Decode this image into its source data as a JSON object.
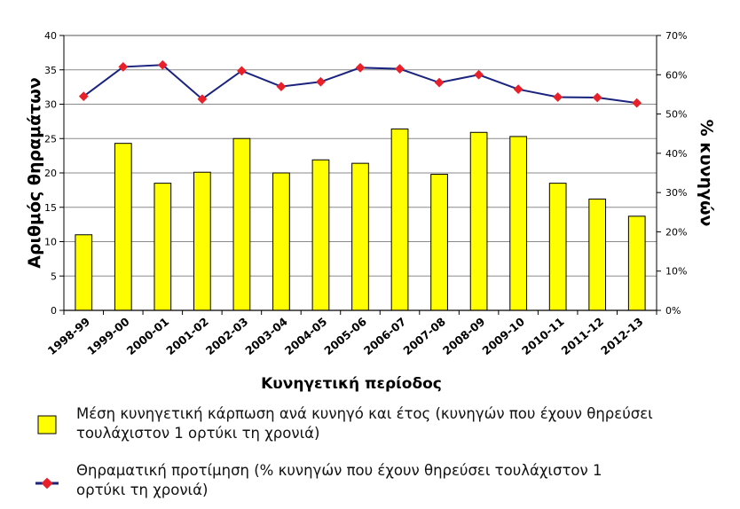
{
  "chart_data": {
    "type": "bar",
    "xlabel": "Κυνηγετική περίοδος",
    "ylabel_left": "Αριθμός θηραμάτων",
    "ylabel_right": "% κυνηγών",
    "categories": [
      "1998-99",
      "1999-00",
      "2000-01",
      "2001-02",
      "2002-03",
      "2003-04",
      "2004-05",
      "2005-06",
      "2006-07",
      "2007-08",
      "2008-09",
      "2009-10",
      "2010-11",
      "2011-12",
      "2012-13"
    ],
    "ylim_left": [
      0,
      40
    ],
    "yticks_left": [
      "0",
      "5",
      "10",
      "15",
      "20",
      "25",
      "30",
      "35",
      "40"
    ],
    "ylim_right": [
      0,
      70
    ],
    "yticks_right": [
      "0%",
      "10%",
      "20%",
      "30%",
      "40%",
      "50%",
      "60%",
      "70%"
    ],
    "grid": true,
    "legend_position": "bottom",
    "series": [
      {
        "name": "Μέση κυνηγετική κάρπωση ανά κυνηγό και έτος (κυνηγών που έχουν θηρεύσει τουλάχιστον 1 ορτύκι τη χρονιά)",
        "type": "bar",
        "axis": "left",
        "color": "#ffff00",
        "values": [
          11.0,
          24.3,
          18.5,
          20.1,
          25.0,
          20.0,
          21.9,
          21.4,
          26.4,
          19.8,
          25.9,
          25.3,
          18.5,
          16.2,
          13.7
        ]
      },
      {
        "name": "Θηραματική προτίμηση (% κυνηγών που έχουν θηρεύσει τουλάχιστον 1 ορτύκι τη χρονιά)",
        "type": "line",
        "axis": "right",
        "color": "#1a237e",
        "marker_color": "#e8202a",
        "values": [
          54.5,
          62.0,
          62.5,
          53.8,
          61.0,
          57.0,
          58.2,
          61.8,
          61.5,
          58.0,
          60.0,
          56.3,
          54.3,
          54.2,
          52.8
        ]
      }
    ]
  },
  "colors": {
    "plot_background": "#ffffff",
    "gridline": "#888888",
    "axis": "#000000"
  }
}
